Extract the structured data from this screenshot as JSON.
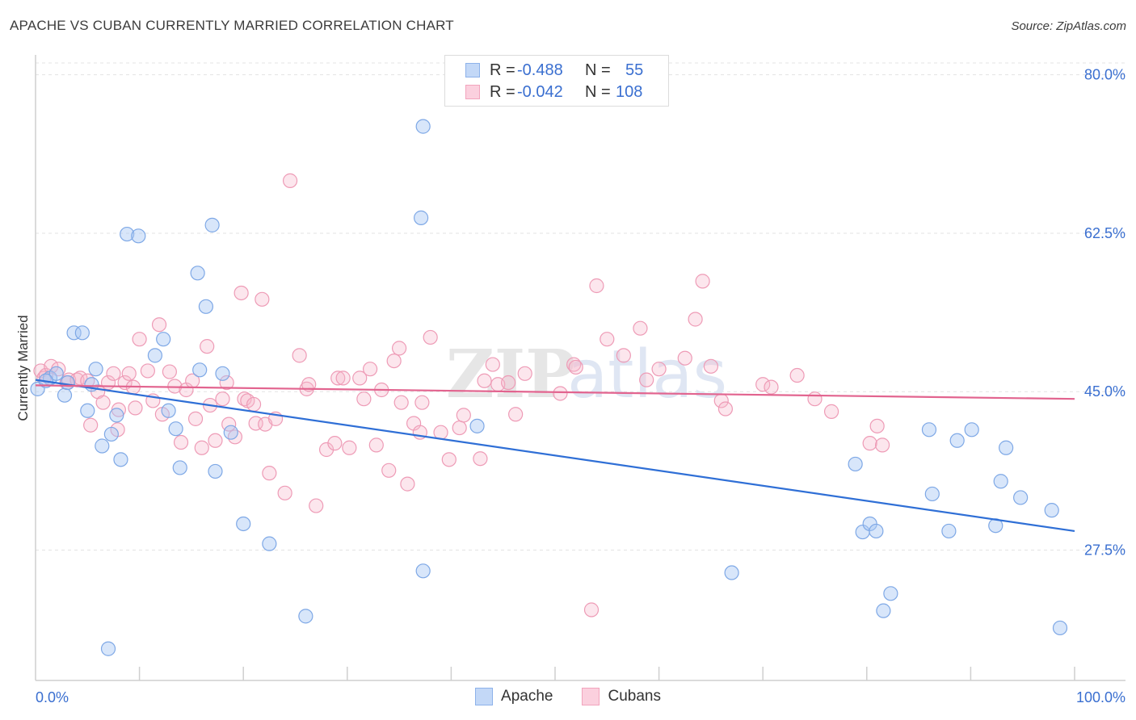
{
  "title": "APACHE VS CUBAN CURRENTLY MARRIED CORRELATION CHART",
  "source": "Source: ZipAtlas.com",
  "colors": {
    "apache": "#a9c8f5",
    "apache_line": "#2f6fd6",
    "cuban": "#f7b8cc",
    "cuban_line": "#e2648f",
    "value_text": "#3a6fd0"
  },
  "legend": {
    "rows": [
      {
        "r_label": "R = ",
        "r_value": "-0.488",
        "n_label": "N = ",
        "n_value": "55"
      },
      {
        "r_label": "R = ",
        "r_value": "-0.042",
        "n_label": "N = ",
        "n_value": "108"
      }
    ]
  },
  "bottom_legend": {
    "apache": "Apache",
    "cubans": "Cubans"
  },
  "chart_data": {
    "type": "scatter",
    "ylabel": "Currently Married",
    "xlabel": "",
    "xlim": [
      0,
      100
    ],
    "ylim": [
      13.1,
      82.2
    ],
    "x_tick_labels": [
      "0.0%",
      "100.0%"
    ],
    "y_ticks": [
      27.5,
      45.0,
      62.5,
      80.0
    ],
    "y_tick_labels": [
      "27.5%",
      "45.0%",
      "62.5%",
      "80.0%"
    ],
    "grid": true,
    "watermark": "ZIPatlas",
    "series": [
      {
        "name": "Apache",
        "trend": {
          "x0": 0,
          "y0": 46.3,
          "x1": 100,
          "y1": 29.6
        },
        "points": [
          [
            0.2,
            45.3
          ],
          [
            1.4,
            46.5
          ],
          [
            2.0,
            47.0
          ],
          [
            2.8,
            44.6
          ],
          [
            3.1,
            46.0
          ],
          [
            3.7,
            51.5
          ],
          [
            4.5,
            51.5
          ],
          [
            5.0,
            42.9
          ],
          [
            5.4,
            45.8
          ],
          [
            5.8,
            47.5
          ],
          [
            6.4,
            39.0
          ],
          [
            7.3,
            40.3
          ],
          [
            7.8,
            42.4
          ],
          [
            8.2,
            37.5
          ],
          [
            8.8,
            62.4
          ],
          [
            9.9,
            62.2
          ],
          [
            11.5,
            49.0
          ],
          [
            12.3,
            50.8
          ],
          [
            12.8,
            42.9
          ],
          [
            13.5,
            40.9
          ],
          [
            13.9,
            36.6
          ],
          [
            15.6,
            58.1
          ],
          [
            15.8,
            47.4
          ],
          [
            16.4,
            54.4
          ],
          [
            17.0,
            63.4
          ],
          [
            17.3,
            36.2
          ],
          [
            18.8,
            40.5
          ],
          [
            20.0,
            30.4
          ],
          [
            22.5,
            28.2
          ],
          [
            26.0,
            20.2
          ],
          [
            37.1,
            64.2
          ],
          [
            37.3,
            74.3
          ],
          [
            37.3,
            25.2
          ],
          [
            42.5,
            41.2
          ],
          [
            67.0,
            25.0
          ],
          [
            78.9,
            37.0
          ],
          [
            79.6,
            29.5
          ],
          [
            80.3,
            30.4
          ],
          [
            80.9,
            29.6
          ],
          [
            81.6,
            20.8
          ],
          [
            82.3,
            22.7
          ],
          [
            86.0,
            40.8
          ],
          [
            86.3,
            33.7
          ],
          [
            87.9,
            29.6
          ],
          [
            88.7,
            39.6
          ],
          [
            90.1,
            40.8
          ],
          [
            92.4,
            30.2
          ],
          [
            92.9,
            35.1
          ],
          [
            93.4,
            38.8
          ],
          [
            94.8,
            33.3
          ],
          [
            97.8,
            31.9
          ],
          [
            98.6,
            18.9
          ],
          [
            7.0,
            16.6
          ],
          [
            18.0,
            47.0
          ],
          [
            1.0,
            46.2
          ]
        ]
      },
      {
        "name": "Cubans",
        "trend": {
          "x0": 0,
          "y0": 45.7,
          "x1": 100,
          "y1": 44.2
        },
        "points": [
          [
            0.5,
            47.3
          ],
          [
            0.8,
            46.5
          ],
          [
            1.0,
            46.8
          ],
          [
            1.5,
            47.8
          ],
          [
            2.2,
            47.5
          ],
          [
            3.0,
            46.0
          ],
          [
            3.2,
            46.3
          ],
          [
            4.0,
            46.3
          ],
          [
            4.3,
            46.5
          ],
          [
            5.0,
            46.2
          ],
          [
            5.3,
            41.3
          ],
          [
            6.0,
            45.0
          ],
          [
            6.5,
            43.8
          ],
          [
            7.0,
            46.0
          ],
          [
            7.5,
            47.0
          ],
          [
            7.9,
            40.8
          ],
          [
            8.0,
            43.0
          ],
          [
            8.6,
            46.0
          ],
          [
            9.0,
            47.0
          ],
          [
            9.4,
            45.5
          ],
          [
            9.6,
            43.2
          ],
          [
            10.0,
            50.8
          ],
          [
            10.8,
            47.3
          ],
          [
            11.3,
            44.0
          ],
          [
            11.9,
            52.4
          ],
          [
            12.2,
            42.5
          ],
          [
            12.9,
            47.2
          ],
          [
            13.4,
            45.6
          ],
          [
            14.0,
            39.4
          ],
          [
            14.5,
            45.2
          ],
          [
            15.1,
            46.2
          ],
          [
            15.4,
            42.0
          ],
          [
            16.0,
            38.8
          ],
          [
            16.5,
            50.0
          ],
          [
            16.8,
            43.5
          ],
          [
            17.3,
            39.6
          ],
          [
            18.0,
            44.2
          ],
          [
            18.4,
            46.0
          ],
          [
            18.6,
            41.4
          ],
          [
            19.2,
            40.0
          ],
          [
            19.8,
            55.9
          ],
          [
            20.1,
            44.2
          ],
          [
            20.4,
            44.0
          ],
          [
            21.0,
            43.6
          ],
          [
            21.2,
            41.5
          ],
          [
            21.8,
            55.2
          ],
          [
            22.1,
            41.4
          ],
          [
            22.5,
            36.0
          ],
          [
            23.1,
            42.0
          ],
          [
            24.0,
            33.8
          ],
          [
            24.5,
            68.3
          ],
          [
            25.4,
            49.0
          ],
          [
            26.1,
            45.3
          ],
          [
            26.3,
            45.8
          ],
          [
            27.0,
            32.4
          ],
          [
            28.0,
            38.6
          ],
          [
            28.8,
            39.3
          ],
          [
            29.1,
            46.5
          ],
          [
            29.6,
            46.5
          ],
          [
            30.2,
            38.8
          ],
          [
            31.2,
            46.5
          ],
          [
            31.6,
            44.2
          ],
          [
            32.2,
            47.5
          ],
          [
            32.8,
            39.1
          ],
          [
            33.3,
            45.2
          ],
          [
            34.0,
            36.3
          ],
          [
            34.5,
            48.4
          ],
          [
            35.0,
            49.8
          ],
          [
            35.2,
            43.8
          ],
          [
            35.8,
            34.8
          ],
          [
            36.4,
            41.5
          ],
          [
            37.0,
            40.5
          ],
          [
            37.2,
            43.8
          ],
          [
            38.0,
            51.0
          ],
          [
            39.0,
            40.5
          ],
          [
            39.8,
            37.5
          ],
          [
            40.8,
            41.0
          ],
          [
            41.2,
            42.4
          ],
          [
            42.8,
            37.6
          ],
          [
            43.2,
            46.2
          ],
          [
            44.0,
            48.0
          ],
          [
            44.5,
            45.8
          ],
          [
            45.5,
            46.0
          ],
          [
            46.2,
            42.5
          ],
          [
            47.1,
            47.0
          ],
          [
            50.5,
            44.8
          ],
          [
            51.8,
            48.0
          ],
          [
            52.0,
            47.7
          ],
          [
            53.5,
            20.9
          ],
          [
            54.0,
            56.7
          ],
          [
            55.0,
            50.8
          ],
          [
            56.6,
            49.0
          ],
          [
            58.2,
            52.0
          ],
          [
            58.8,
            46.3
          ],
          [
            60.0,
            47.5
          ],
          [
            62.5,
            48.7
          ],
          [
            63.5,
            53.0
          ],
          [
            64.2,
            57.2
          ],
          [
            65.0,
            47.8
          ],
          [
            66.0,
            44.0
          ],
          [
            66.4,
            43.1
          ],
          [
            70.0,
            45.8
          ],
          [
            70.8,
            45.5
          ],
          [
            73.3,
            46.8
          ],
          [
            75.0,
            44.2
          ],
          [
            76.6,
            42.8
          ],
          [
            80.3,
            39.3
          ],
          [
            81.0,
            41.2
          ],
          [
            81.5,
            39.1
          ]
        ]
      }
    ]
  }
}
